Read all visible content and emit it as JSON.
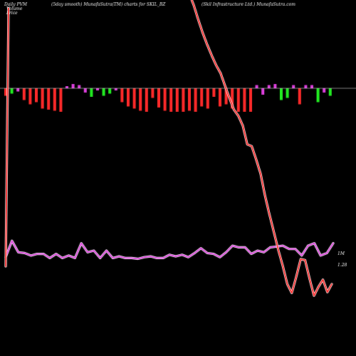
{
  "header": {
    "left_lines": [
      "Daily PVM",
      "Volume",
      "Price"
    ],
    "center": "(5day smooth) MunafaSutra(TM) charts for SKIL_BZ",
    "right": "(Skil Infrastructure Ltd.) MunafaSutra.com"
  },
  "labels": {
    "volume_level": "1M",
    "price_level": "1.28"
  },
  "colors": {
    "background": "#000000",
    "price_line": "#ff2a2a",
    "price_glow": "#ffffff",
    "volume_line": "#e040e0",
    "volume_glow": "#ffffff",
    "bar_down": "#ff2a2a",
    "bar_up_strong": "#e040e0",
    "bar_up": "#22ee22",
    "baseline": "#ffffff"
  },
  "chart_data": {
    "type": "line",
    "series": [
      {
        "values": [
          53.0,
          46.5,
          38.5,
          31.0,
          24.5,
          18.5,
          13.0,
          8.5,
          1.5,
          -5.5,
          -12.0,
          -15.5,
          -21.0,
          -31.5,
          -32.5,
          -40.0,
          -48.0,
          -60.5,
          -71.0,
          -81.0,
          -91.0,
          -100.0,
          -110.0,
          -115.0,
          -106.0,
          -96.0,
          -96.5,
          -107.0,
          -116.5,
          -111.5,
          -107.5,
          -114.5,
          -110.0
        ]
      },
      {
        "values": [
          0.6,
          1.6,
          0.9,
          0.85,
          0.7,
          0.8,
          0.8,
          0.55,
          0.8,
          0.55,
          0.7,
          0.55,
          1.45,
          0.9,
          1.0,
          0.55,
          1.0,
          0.55,
          0.65,
          0.55,
          0.55,
          0.5,
          0.6,
          0.65,
          0.55,
          0.55,
          0.75,
          0.65,
          0.75,
          0.6,
          0.85,
          1.15,
          0.85,
          0.8,
          0.6,
          0.9,
          1.3,
          1.2,
          1.2,
          0.8,
          1.0,
          0.9,
          1.2,
          1.25,
          1.3,
          1.1,
          1.1,
          0.7,
          1.3,
          1.45,
          0.7,
          0.85,
          1.45
        ]
      }
    ],
    "bars": [
      {
        "value": -0.35,
        "dir": "down"
      },
      {
        "value": -0.25,
        "dir": "up"
      },
      {
        "value": -0.15,
        "dir": "up_strong"
      },
      {
        "value": -0.55,
        "dir": "down"
      },
      {
        "value": -0.75,
        "dir": "down"
      },
      {
        "value": -0.65,
        "dir": "down"
      },
      {
        "value": -0.95,
        "dir": "down"
      },
      {
        "value": -1.0,
        "dir": "down"
      },
      {
        "value": -1.05,
        "dir": "down"
      },
      {
        "value": -1.1,
        "dir": "down"
      },
      {
        "value": 0.1,
        "dir": "up_strong"
      },
      {
        "value": 0.2,
        "dir": "up_strong"
      },
      {
        "value": 0.15,
        "dir": "up_strong"
      },
      {
        "value": -0.2,
        "dir": "up_strong"
      },
      {
        "value": -0.4,
        "dir": "up"
      },
      {
        "value": -0.1,
        "dir": "up_strong"
      },
      {
        "value": -0.35,
        "dir": "up"
      },
      {
        "value": -0.25,
        "dir": "up"
      },
      {
        "value": -0.1,
        "dir": "up_strong"
      },
      {
        "value": -0.65,
        "dir": "down"
      },
      {
        "value": -0.85,
        "dir": "down"
      },
      {
        "value": -0.95,
        "dir": "down"
      },
      {
        "value": -1.05,
        "dir": "down"
      },
      {
        "value": -1.1,
        "dir": "down"
      },
      {
        "value": -0.45,
        "dir": "down"
      },
      {
        "value": -0.9,
        "dir": "down"
      },
      {
        "value": -1.05,
        "dir": "down"
      },
      {
        "value": -1.1,
        "dir": "down"
      },
      {
        "value": -1.1,
        "dir": "down"
      },
      {
        "value": -1.1,
        "dir": "down"
      },
      {
        "value": -1.05,
        "dir": "down"
      },
      {
        "value": -1.1,
        "dir": "down"
      },
      {
        "value": -0.85,
        "dir": "down"
      },
      {
        "value": -0.95,
        "dir": "down"
      },
      {
        "value": -0.4,
        "dir": "down"
      },
      {
        "value": -0.85,
        "dir": "down"
      },
      {
        "value": -0.75,
        "dir": "down"
      },
      {
        "value": -0.95,
        "dir": "down"
      },
      {
        "value": -1.1,
        "dir": "down"
      },
      {
        "value": -1.1,
        "dir": "down"
      },
      {
        "value": -1.1,
        "dir": "down"
      },
      {
        "value": 0.15,
        "dir": "up_strong"
      },
      {
        "value": -0.3,
        "dir": "up_strong"
      },
      {
        "value": 0.15,
        "dir": "up_strong"
      },
      {
        "value": 0.2,
        "dir": "up_strong"
      },
      {
        "value": -0.55,
        "dir": "up"
      },
      {
        "value": -0.45,
        "dir": "up"
      },
      {
        "value": 0.15,
        "dir": "up_strong"
      },
      {
        "value": -0.75,
        "dir": "down"
      },
      {
        "value": 0.15,
        "dir": "up_strong"
      },
      {
        "value": 0.15,
        "dir": "up_strong"
      },
      {
        "value": -0.65,
        "dir": "up"
      },
      {
        "value": -0.2,
        "dir": "up_strong"
      },
      {
        "value": -0.35,
        "dir": "up"
      }
    ]
  }
}
